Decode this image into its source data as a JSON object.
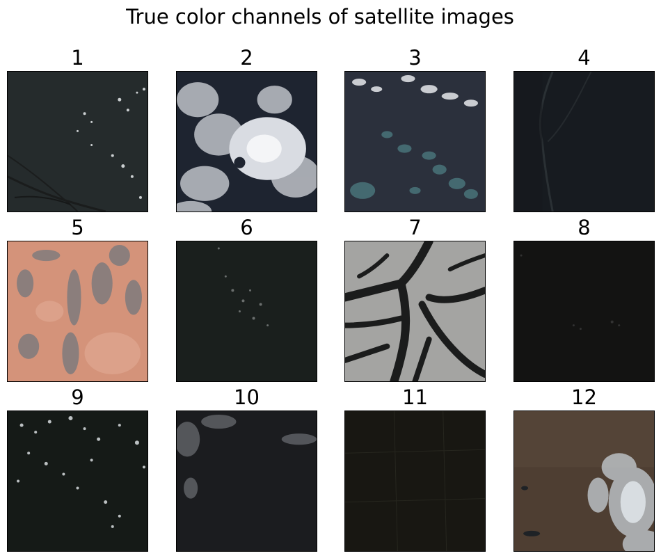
{
  "figure": {
    "title": "True color channels of satellite images"
  },
  "panels": [
    {
      "label": "1",
      "scene": "dark-land-scattered-clouds",
      "base_color": "#22282a",
      "accent_color": "#eeeeee"
    },
    {
      "label": "2",
      "scene": "heavy-cloud-cover-over-sea",
      "base_color": "#1e2430",
      "accent_color": "#e6e8ec"
    },
    {
      "label": "3",
      "scene": "sea-with-reefs-and-clouds",
      "base_color": "#2b303c",
      "accent_color": "#4d7c82"
    },
    {
      "label": "4",
      "scene": "dark-coastline",
      "base_color": "#171b20",
      "accent_color": "#2e3438"
    },
    {
      "label": "5",
      "scene": "desert-sand-and-rock",
      "base_color": "#d4937a",
      "accent_color": "#7a7a7d"
    },
    {
      "label": "6",
      "scene": "dark-land-light-clouds",
      "base_color": "#1a1f1d",
      "accent_color": "#8c9090"
    },
    {
      "label": "7",
      "scene": "snow-covered-mountains",
      "base_color": "#a4a4a2",
      "accent_color": "#1b1c1c"
    },
    {
      "label": "8",
      "scene": "very-dark-land",
      "base_color": "#131312",
      "accent_color": "#3a3a3a"
    },
    {
      "label": "9",
      "scene": "dark-land-many-small-clouds",
      "base_color": "#151a17",
      "accent_color": "#d9dde0"
    },
    {
      "label": "10",
      "scene": "dark-sea-thin-clouds",
      "base_color": "#1b1c1f",
      "accent_color": "#9a9ca2"
    },
    {
      "label": "11",
      "scene": "dark-vegetated-land",
      "base_color": "#181712",
      "accent_color": "#2a2a22"
    },
    {
      "label": "12",
      "scene": "brown-land-with-smoke-clouds",
      "base_color": "#4e3e32",
      "accent_color": "#c8d0d6"
    }
  ]
}
